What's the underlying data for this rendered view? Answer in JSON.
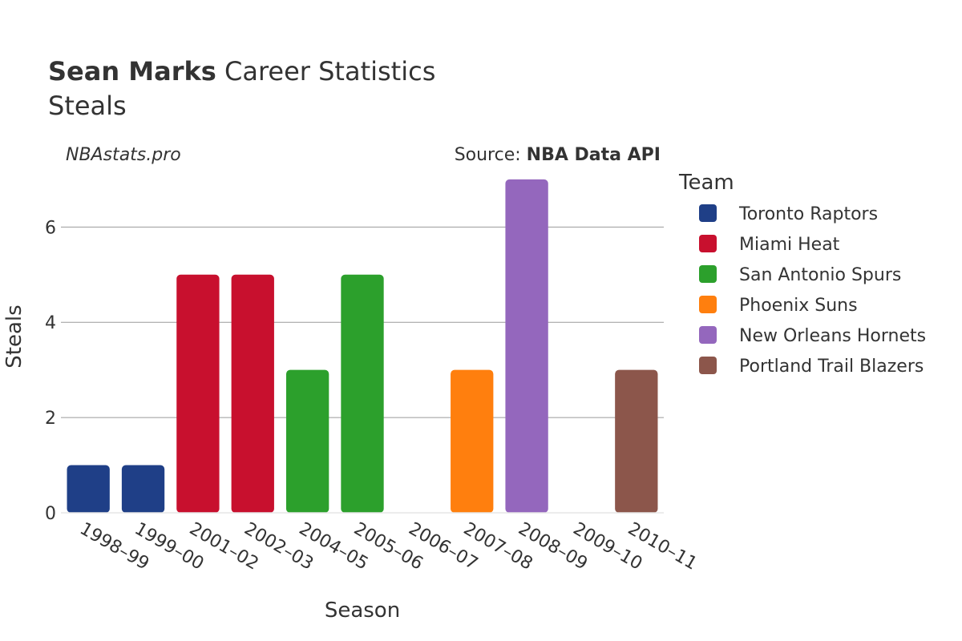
{
  "header": {
    "title_bold": "Sean Marks",
    "title_rest": " Career Statistics",
    "subtitle": "Steals",
    "watermark": "NBAstats.pro",
    "source_prefix": "Source: ",
    "source_name": "NBA Data API"
  },
  "chart_data": {
    "type": "bar",
    "xlabel": "Season",
    "ylabel": "Steals",
    "ylim": [
      0,
      7.2
    ],
    "yticks": [
      0,
      2,
      4,
      6
    ],
    "grid": true,
    "legend_placement": "right",
    "legend_title": "Team",
    "categories": [
      "1998–99",
      "1999–00",
      "2001–02",
      "2002–03",
      "2004–05",
      "2005–06",
      "2006–07",
      "2007–08",
      "2008–09",
      "2009–10",
      "2010–11"
    ],
    "series": [
      {
        "name": "Toronto Raptors",
        "color": "#1f3f87",
        "points": [
          {
            "x": "1998–99",
            "y": 1
          },
          {
            "x": "1999–00",
            "y": 1
          }
        ]
      },
      {
        "name": "Miami Heat",
        "color": "#c8102e",
        "points": [
          {
            "x": "2001–02",
            "y": 5
          },
          {
            "x": "2002–03",
            "y": 5
          }
        ]
      },
      {
        "name": "San Antonio Spurs",
        "color": "#2ca02c",
        "points": [
          {
            "x": "2004–05",
            "y": 3
          },
          {
            "x": "2005–06",
            "y": 5
          },
          {
            "x": "2006–07",
            "y": 0
          }
        ]
      },
      {
        "name": "Phoenix Suns",
        "color": "#ff7f0e",
        "points": [
          {
            "x": "2007–08",
            "y": 3
          }
        ]
      },
      {
        "name": "New Orleans Hornets",
        "color": "#9467bd",
        "points": [
          {
            "x": "2008–09",
            "y": 7
          },
          {
            "x": "2009–10",
            "y": 0
          }
        ]
      },
      {
        "name": "Portland Trail Blazers",
        "color": "#8c564b",
        "points": [
          {
            "x": "2010–11",
            "y": 3
          }
        ]
      }
    ]
  }
}
